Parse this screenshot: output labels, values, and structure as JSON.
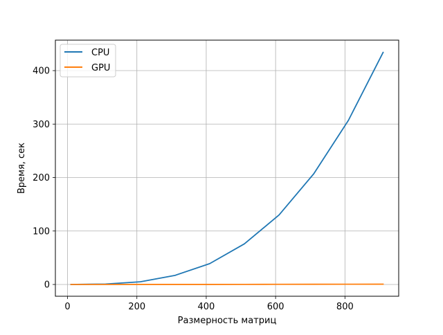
{
  "chart_data": {
    "type": "line",
    "title": "",
    "xlabel": "Размерность матриц",
    "ylabel": "Время, сек",
    "xlim": [
      -35,
      955
    ],
    "ylim": [
      -22,
      457
    ],
    "x_ticks": [
      0,
      200,
      400,
      600,
      800
    ],
    "y_ticks": [
      0,
      100,
      200,
      300,
      400
    ],
    "grid": true,
    "legend_position": "top-left",
    "x": [
      10,
      110,
      210,
      310,
      410,
      510,
      610,
      710,
      810,
      910
    ],
    "series": [
      {
        "name": "CPU",
        "color": "#1f77b4",
        "values": [
          0.01,
          0.8,
          5.0,
          17.0,
          39.0,
          76.0,
          130.0,
          207.0,
          307.0,
          434.0
        ]
      },
      {
        "name": "GPU",
        "color": "#ff7f0e",
        "values": [
          0.0,
          0.0,
          0.1,
          0.1,
          0.1,
          0.2,
          0.3,
          0.4,
          0.5,
          0.6
        ]
      }
    ]
  }
}
